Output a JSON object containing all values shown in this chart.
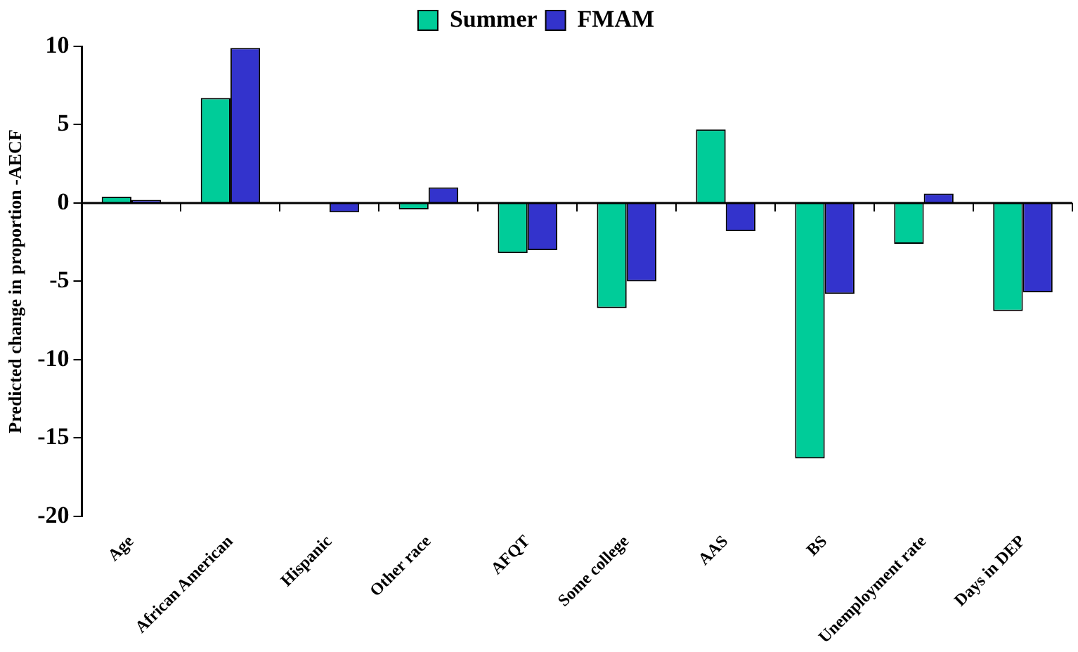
{
  "chart_data": {
    "type": "bar",
    "ylabel": "Predicted change in proportion -AECF",
    "categories": [
      "Age",
      "African American",
      "Hispanic",
      "Other race",
      "AFQT",
      "Some college",
      "AAS",
      "BS",
      "Unemployment rate",
      "Days in DEP"
    ],
    "series": [
      {
        "name": "Summer",
        "color": "#00cc99",
        "values": [
          0.4,
          6.7,
          0,
          -0.4,
          -3.2,
          -6.7,
          4.7,
          -16.3,
          -2.6,
          -6.9
        ]
      },
      {
        "name": "FMAM",
        "color": "#3333cc",
        "values": [
          0.2,
          9.9,
          -0.6,
          1.0,
          -3.0,
          -5.0,
          -1.8,
          -5.8,
          0.6,
          -5.7
        ]
      }
    ],
    "ref_lines": [
      {
        "axis": "y",
        "value": 0,
        "color": "#000000"
      }
    ],
    "ylim": [
      -20,
      10
    ],
    "yticks": [
      -20,
      -15,
      -10,
      -5,
      0,
      5,
      10
    ],
    "grid": false,
    "legend": "top"
  }
}
